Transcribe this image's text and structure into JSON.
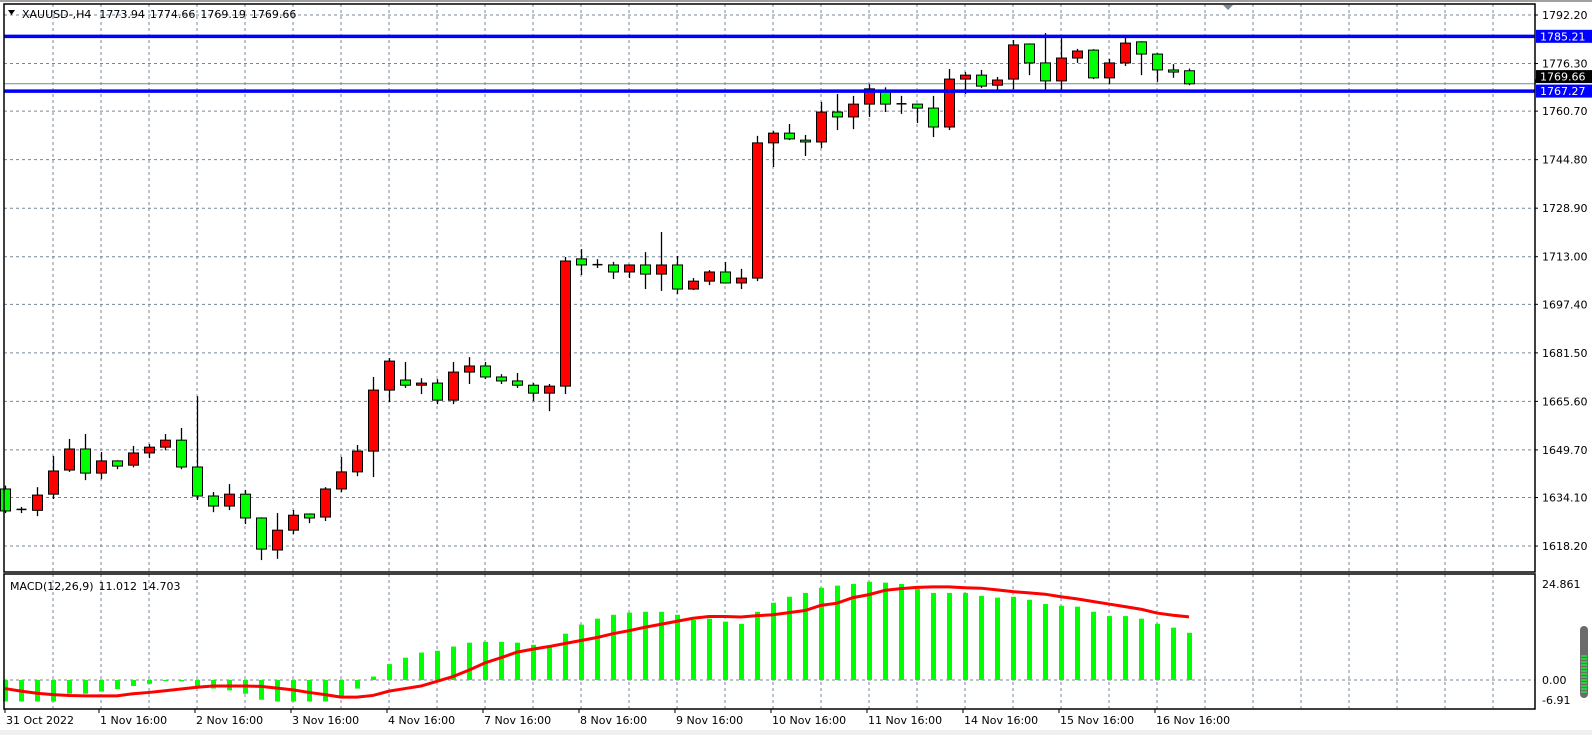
{
  "header": {
    "symbol": "XAUUSD-,H4",
    "open": "1773.94",
    "high": "1774.66",
    "low": "1769.19",
    "close": "1769.66",
    "menu_icon": "triangle-down-icon"
  },
  "colors": {
    "bull": "#ff0000",
    "bear": "#00ff00",
    "grid": "#778899",
    "level_line": "#0000ff",
    "bid_line": "#778899",
    "macd_hist": "#00ff00",
    "macd_signal": "#ff0000"
  },
  "price_axis": {
    "labels": [
      "1792.20",
      "1776.30",
      "1760.70",
      "1744.80",
      "1728.90",
      "1713.00",
      "1697.40",
      "1681.50",
      "1665.60",
      "1649.70",
      "1634.10",
      "1618.20"
    ]
  },
  "levels": [
    {
      "price": 1785.21,
      "label": "1785.21"
    },
    {
      "price": 1767.27,
      "label": "1767.27"
    }
  ],
  "bid": {
    "price": 1769.66,
    "label": "1769.66"
  },
  "time_axis": {
    "labels": [
      "31 Oct 2022",
      "1 Nov 16:00",
      "2 Nov 16:00",
      "3 Nov 16:00",
      "4 Nov 16:00",
      "7 Nov 16:00",
      "8 Nov 16:00",
      "9 Nov 16:00",
      "10 Nov 16:00",
      "11 Nov 16:00",
      "14 Nov 16:00",
      "15 Nov 16:00",
      "16 Nov 16:00"
    ]
  },
  "macd": {
    "label": "MACD(12,26,9)",
    "value": "11.012",
    "signal_value": "14.703",
    "axis_labels": [
      "24.861",
      "0.00",
      "-6.91"
    ],
    "ylim": [
      -6.91,
      24.861
    ]
  },
  "chart_data": {
    "type": "candlestick",
    "ohlc_order": [
      "open",
      "high",
      "low",
      "close"
    ],
    "candles": [
      [
        1636.9,
        1638,
        1629,
        1629.7
      ],
      [
        1630.2,
        1631,
        1629,
        1629.8
      ],
      [
        1629.9,
        1637.5,
        1628,
        1634.9
      ],
      [
        1635.2,
        1647.7,
        1633.6,
        1642.8
      ],
      [
        1643.1,
        1653.3,
        1642.5,
        1650
      ],
      [
        1650,
        1654.9,
        1639.8,
        1642.1
      ],
      [
        1642.1,
        1649,
        1640.1,
        1646.1
      ],
      [
        1646.1,
        1646.3,
        1643.4,
        1644.4
      ],
      [
        1644.7,
        1651,
        1644,
        1648.7
      ],
      [
        1648.7,
        1651.6,
        1647,
        1650.6
      ],
      [
        1650.6,
        1654.9,
        1649.6,
        1652.9
      ],
      [
        1652.9,
        1656.9,
        1643.4,
        1644.1
      ],
      [
        1644.1,
        1667.3,
        1633.3,
        1634.6
      ],
      [
        1634.6,
        1635.9,
        1629.3,
        1631.3
      ],
      [
        1631.3,
        1638.5,
        1630,
        1635.2
      ],
      [
        1635.2,
        1636.6,
        1625.4,
        1627.4
      ],
      [
        1627.4,
        1627.6,
        1613.6,
        1617.2
      ],
      [
        1616.9,
        1629,
        1614,
        1623.4
      ],
      [
        1623.4,
        1630,
        1622.1,
        1628.3
      ],
      [
        1628.7,
        1628.9,
        1625.7,
        1627.4
      ],
      [
        1627.7,
        1637.5,
        1626.4,
        1636.9
      ],
      [
        1636.9,
        1647.4,
        1635.9,
        1642.5
      ],
      [
        1642.5,
        1651.3,
        1641.1,
        1649.3
      ],
      [
        1649.3,
        1673.6,
        1640.8,
        1669.3
      ],
      [
        1669.3,
        1679.8,
        1665.4,
        1678.8
      ],
      [
        1672.6,
        1678.5,
        1670,
        1670.9
      ],
      [
        1670.9,
        1673.2,
        1668,
        1671.6
      ],
      [
        1671.6,
        1672.9,
        1664.7,
        1666
      ],
      [
        1666,
        1678.5,
        1664.7,
        1675.2
      ],
      [
        1675.2,
        1680.1,
        1671.3,
        1677.2
      ],
      [
        1677.2,
        1678.5,
        1672.9,
        1673.6
      ],
      [
        1673.6,
        1674.5,
        1671.3,
        1672.3
      ],
      [
        1672.3,
        1674.9,
        1670,
        1670.9
      ],
      [
        1670.9,
        1671.6,
        1665.7,
        1668.3
      ],
      [
        1668.3,
        1671.3,
        1662.4,
        1670.6
      ],
      [
        1670.6,
        1712.9,
        1668,
        1711.6
      ],
      [
        1712.3,
        1715.5,
        1707,
        1710.3
      ],
      [
        1710.4,
        1712.2,
        1709.3,
        1710.2
      ],
      [
        1710.3,
        1711.3,
        1705.7,
        1708
      ],
      [
        1708,
        1710.5,
        1706,
        1710.3
      ],
      [
        1710.3,
        1714.5,
        1702.4,
        1707.3
      ],
      [
        1707.3,
        1721.1,
        1701.8,
        1710.3
      ],
      [
        1710.3,
        1713.2,
        1700.8,
        1702.4
      ],
      [
        1702.4,
        1706,
        1702.1,
        1705
      ],
      [
        1705,
        1708.6,
        1703.7,
        1708
      ],
      [
        1708,
        1711.3,
        1704.2,
        1704.4
      ],
      [
        1704.4,
        1709,
        1702.4,
        1706
      ],
      [
        1706,
        1752.6,
        1705,
        1750.3
      ],
      [
        1750.3,
        1754.2,
        1742.4,
        1753.5
      ],
      [
        1753.5,
        1756.5,
        1751.2,
        1751.6
      ],
      [
        1751.2,
        1752.9,
        1746,
        1750.6
      ],
      [
        1750.6,
        1763.7,
        1748.6,
        1760.4
      ],
      [
        1760.4,
        1766.3,
        1754.5,
        1758.8
      ],
      [
        1758.8,
        1765.7,
        1754.8,
        1763
      ],
      [
        1763,
        1769.5,
        1758.8,
        1768
      ],
      [
        1767,
        1768.5,
        1760.4,
        1763
      ],
      [
        1763.1,
        1765.7,
        1759.8,
        1762.9
      ],
      [
        1763,
        1763.2,
        1756.8,
        1761.7
      ],
      [
        1761.7,
        1765.7,
        1752.2,
        1755.5
      ],
      [
        1755.5,
        1774.5,
        1754.5,
        1771.2
      ],
      [
        1771.2,
        1773.5,
        1766.3,
        1772.5
      ],
      [
        1772.5,
        1774.2,
        1768.3,
        1768.9
      ],
      [
        1769.2,
        1771.9,
        1767.6,
        1770.9
      ],
      [
        1771.2,
        1784,
        1767.9,
        1782.4
      ],
      [
        1782.7,
        1782.9,
        1772.5,
        1776.5
      ],
      [
        1776.5,
        1786.3,
        1767.6,
        1770.6
      ],
      [
        1770.6,
        1784.7,
        1767.6,
        1778.1
      ],
      [
        1778.1,
        1781.1,
        1776.5,
        1780.4
      ],
      [
        1780.7,
        1781,
        1771.2,
        1771.6
      ],
      [
        1771.6,
        1777.8,
        1769.6,
        1776.5
      ],
      [
        1776.5,
        1784.7,
        1775.5,
        1783
      ],
      [
        1783.4,
        1783.6,
        1772.5,
        1779.4
      ],
      [
        1779.4,
        1779.7,
        1770.3,
        1774.2
      ],
      [
        1774.2,
        1776.1,
        1771.6,
        1773.5
      ],
      [
        1773.94,
        1774.66,
        1769.19,
        1769.66
      ]
    ],
    "ylim": [
      1613.6,
      1792.2
    ],
    "macd_histogram": [
      -5.0,
      -5.0,
      -5.0,
      -5.0,
      -3.2,
      -3.2,
      -2.7,
      -2.1,
      -1.4,
      -0.9,
      -0.1,
      -0.3,
      -1.5,
      -2.0,
      -2.4,
      -3.2,
      -4.6,
      -5.0,
      -5.0,
      -5.0,
      -5.0,
      -4.2,
      -2.0,
      0.8,
      3.7,
      5.2,
      6.4,
      6.8,
      7.8,
      8.7,
      8.9,
      8.9,
      8.7,
      8.2,
      7.8,
      10.8,
      12.9,
      14.3,
      15.2,
      15.7,
      15.9,
      15.9,
      15.2,
      14.0,
      14.3,
      13.6,
      13.1,
      15.9,
      18.0,
      19.4,
      20.3,
      21.5,
      22.0,
      22.4,
      22.9,
      22.7,
      22.4,
      21.2,
      20.3,
      20.3,
      20.3,
      19.6,
      19.2,
      19.4,
      18.7,
      17.7,
      17.3,
      17.1,
      15.9,
      14.9,
      14.9,
      14.3,
      13.1,
      12.2,
      11.012
    ],
    "macd_signal": [
      -2.0,
      -2.6,
      -3.1,
      -3.4,
      -3.6,
      -3.7,
      -3.7,
      -3.7,
      -3.2,
      -2.9,
      -2.5,
      -2.1,
      -1.7,
      -1.4,
      -1.4,
      -1.4,
      -1.5,
      -1.9,
      -2.3,
      -2.9,
      -3.4,
      -4.0,
      -4.0,
      -3.6,
      -2.6,
      -2.0,
      -1.4,
      -0.3,
      0.8,
      2.3,
      4.0,
      5.2,
      6.5,
      7.2,
      7.8,
      8.5,
      9.2,
      9.9,
      10.8,
      11.5,
      12.3,
      13.0,
      13.7,
      14.4,
      14.8,
      14.8,
      14.7,
      15.0,
      15.2,
      15.7,
      16.2,
      17.4,
      17.9,
      19.2,
      19.9,
      20.9,
      21.3,
      21.6,
      21.7,
      21.7,
      21.5,
      21.4,
      21.0,
      20.6,
      20.3,
      20.0,
      19.4,
      18.9,
      18.3,
      17.7,
      17.1,
      16.5,
      15.6,
      15.1,
      14.703
    ]
  }
}
